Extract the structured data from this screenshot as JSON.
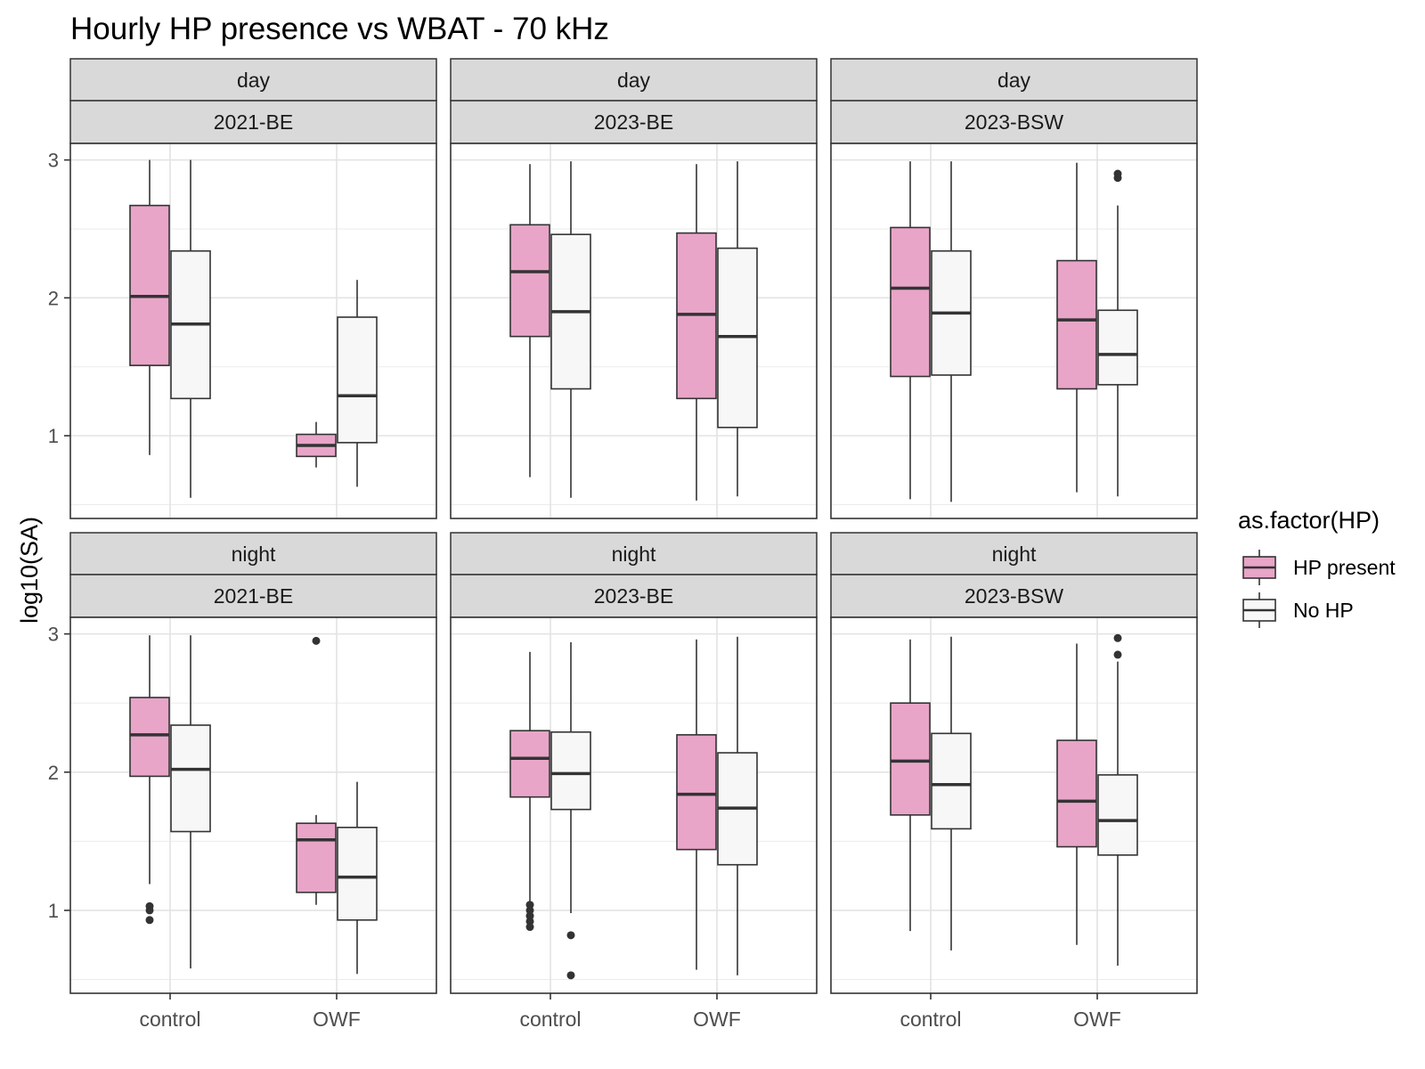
{
  "chart_data": {
    "type": "boxplot",
    "title": "Hourly HP presence vs WBAT - 70 kHz",
    "ylabel": "log10(SA)",
    "xlabel": "",
    "ylim": [
      0.4,
      3.12
    ],
    "y_ticks": [
      1,
      2,
      3
    ],
    "x_categories": [
      "control",
      "OWF"
    ],
    "legend": {
      "title": "as.factor(HP)",
      "placement": "right",
      "entries": [
        {
          "key": "present",
          "label": "HP present",
          "color": "#E8A5C8"
        },
        {
          "key": "absent",
          "label": "No HP",
          "color": "#F7F7F7"
        }
      ]
    },
    "grid": true,
    "panels": [
      {
        "period": "day",
        "site": "2021-BE",
        "boxes": [
          {
            "x": "control",
            "hp": "present",
            "lo": 0.86,
            "q1": 1.51,
            "median": 2.01,
            "q3": 2.67,
            "hi": 3.0,
            "outliers": []
          },
          {
            "x": "control",
            "hp": "absent",
            "lo": 0.55,
            "q1": 1.27,
            "median": 1.81,
            "q3": 2.34,
            "hi": 3.0,
            "outliers": []
          },
          {
            "x": "OWF",
            "hp": "present",
            "lo": 0.77,
            "q1": 0.85,
            "median": 0.93,
            "q3": 1.01,
            "hi": 1.1,
            "outliers": []
          },
          {
            "x": "OWF",
            "hp": "absent",
            "lo": 0.63,
            "q1": 0.95,
            "median": 1.29,
            "q3": 1.86,
            "hi": 2.13,
            "outliers": []
          }
        ]
      },
      {
        "period": "day",
        "site": "2023-BE",
        "boxes": [
          {
            "x": "control",
            "hp": "present",
            "lo": 0.7,
            "q1": 1.72,
            "median": 2.19,
            "q3": 2.53,
            "hi": 2.97,
            "outliers": []
          },
          {
            "x": "control",
            "hp": "absent",
            "lo": 0.55,
            "q1": 1.34,
            "median": 1.9,
            "q3": 2.46,
            "hi": 2.99,
            "outliers": []
          },
          {
            "x": "OWF",
            "hp": "present",
            "lo": 0.53,
            "q1": 1.27,
            "median": 1.88,
            "q3": 2.47,
            "hi": 2.97,
            "outliers": []
          },
          {
            "x": "OWF",
            "hp": "absent",
            "lo": 0.56,
            "q1": 1.06,
            "median": 1.72,
            "q3": 2.36,
            "hi": 2.99,
            "outliers": []
          }
        ]
      },
      {
        "period": "day",
        "site": "2023-BSW",
        "boxes": [
          {
            "x": "control",
            "hp": "present",
            "lo": 0.54,
            "q1": 1.43,
            "median": 2.07,
            "q3": 2.51,
            "hi": 2.99,
            "outliers": []
          },
          {
            "x": "control",
            "hp": "absent",
            "lo": 0.52,
            "q1": 1.44,
            "median": 1.89,
            "q3": 2.34,
            "hi": 2.99,
            "outliers": []
          },
          {
            "x": "OWF",
            "hp": "present",
            "lo": 0.59,
            "q1": 1.34,
            "median": 1.84,
            "q3": 2.27,
            "hi": 2.98,
            "outliers": []
          },
          {
            "x": "OWF",
            "hp": "absent",
            "lo": 0.56,
            "q1": 1.37,
            "median": 1.59,
            "q3": 1.91,
            "hi": 2.67,
            "outliers": [
              2.87,
              2.9
            ]
          }
        ]
      },
      {
        "period": "night",
        "site": "2021-BE",
        "boxes": [
          {
            "x": "control",
            "hp": "present",
            "lo": 1.19,
            "q1": 1.97,
            "median": 2.27,
            "q3": 2.54,
            "hi": 2.99,
            "outliers": [
              1.03,
              1.0,
              0.93
            ]
          },
          {
            "x": "control",
            "hp": "absent",
            "lo": 0.58,
            "q1": 1.57,
            "median": 2.02,
            "q3": 2.34,
            "hi": 2.99,
            "outliers": []
          },
          {
            "x": "OWF",
            "hp": "present",
            "lo": 1.04,
            "q1": 1.13,
            "median": 1.51,
            "q3": 1.63,
            "hi": 1.69,
            "outliers": [
              2.95
            ]
          },
          {
            "x": "OWF",
            "hp": "absent",
            "lo": 0.54,
            "q1": 0.93,
            "median": 1.24,
            "q3": 1.6,
            "hi": 1.93,
            "outliers": []
          }
        ]
      },
      {
        "period": "night",
        "site": "2023-BE",
        "boxes": [
          {
            "x": "control",
            "hp": "present",
            "lo": 1.06,
            "q1": 1.82,
            "median": 2.1,
            "q3": 2.3,
            "hi": 2.87,
            "outliers": [
              1.04,
              1.0,
              0.96,
              0.92,
              0.88
            ]
          },
          {
            "x": "control",
            "hp": "absent",
            "lo": 0.98,
            "q1": 1.73,
            "median": 1.99,
            "q3": 2.29,
            "hi": 2.94,
            "outliers": [
              0.82,
              0.53
            ]
          },
          {
            "x": "OWF",
            "hp": "present",
            "lo": 0.57,
            "q1": 1.44,
            "median": 1.84,
            "q3": 2.27,
            "hi": 2.96,
            "outliers": []
          },
          {
            "x": "OWF",
            "hp": "absent",
            "lo": 0.53,
            "q1": 1.33,
            "median": 1.74,
            "q3": 2.14,
            "hi": 2.98,
            "outliers": []
          }
        ]
      },
      {
        "period": "night",
        "site": "2023-BSW",
        "boxes": [
          {
            "x": "control",
            "hp": "present",
            "lo": 0.85,
            "q1": 1.69,
            "median": 2.08,
            "q3": 2.5,
            "hi": 2.96,
            "outliers": []
          },
          {
            "x": "control",
            "hp": "absent",
            "lo": 0.71,
            "q1": 1.59,
            "median": 1.91,
            "q3": 2.28,
            "hi": 2.98,
            "outliers": []
          },
          {
            "x": "OWF",
            "hp": "present",
            "lo": 0.75,
            "q1": 1.46,
            "median": 1.79,
            "q3": 2.23,
            "hi": 2.93,
            "outliers": []
          },
          {
            "x": "OWF",
            "hp": "absent",
            "lo": 0.6,
            "q1": 1.4,
            "median": 1.65,
            "q3": 1.98,
            "hi": 2.8,
            "outliers": [
              2.85,
              2.97
            ]
          }
        ]
      }
    ]
  }
}
